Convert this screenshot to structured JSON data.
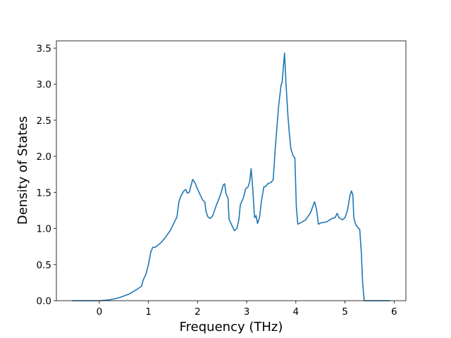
{
  "chart_data": {
    "type": "line",
    "xlabel": "Frequency (THz)",
    "ylabel": "Density of States",
    "xlim": [
      -0.874,
      6.24
    ],
    "ylim": [
      0,
      3.6
    ],
    "xticks": [
      0,
      1,
      2,
      3,
      4,
      5,
      6
    ],
    "yticks": [
      {
        "value": 0,
        "label": "0.0"
      },
      0.5,
      {
        "value": 1,
        "label": "1.0"
      },
      1.5,
      {
        "value": 2,
        "label": "2.0"
      },
      2.5,
      {
        "value": 3,
        "label": "3.0"
      },
      3.5
    ],
    "grid": false,
    "series": [
      {
        "color": "#1f77b4",
        "x": [
          -0.55,
          0,
          0.2,
          0.4,
          0.6,
          0.75,
          0.86,
          0.89,
          0.95,
          1.0,
          1.05,
          1.09,
          1.14,
          1.25,
          1.35,
          1.45,
          1.55,
          1.58,
          1.62,
          1.66,
          1.72,
          1.76,
          1.79,
          1.83,
          1.9,
          1.95,
          1.99,
          2.05,
          2.1,
          2.15,
          2.17,
          2.21,
          2.26,
          2.31,
          2.38,
          2.44,
          2.48,
          2.52,
          2.55,
          2.58,
          2.62,
          2.64,
          2.7,
          2.75,
          2.8,
          2.84,
          2.87,
          2.93,
          2.98,
          3.03,
          3.06,
          3.09,
          3.12,
          3.16,
          3.19,
          3.22,
          3.26,
          3.3,
          3.35,
          3.38,
          3.43,
          3.5,
          3.54,
          3.58,
          3.62,
          3.65,
          3.7,
          3.72,
          3.77,
          3.8,
          3.84,
          3.87,
          3.9,
          3.95,
          3.98,
          4.01,
          4.04,
          4.1,
          4.2,
          4.3,
          4.38,
          4.42,
          4.46,
          4.52,
          4.62,
          4.74,
          4.8,
          4.84,
          4.88,
          4.95,
          5.0,
          5.05,
          5.1,
          5.13,
          5.16,
          5.18,
          5.22,
          5.28,
          5.3,
          5.33,
          5.36,
          5.39,
          5.92
        ],
        "values": [
          0,
          0,
          0.01,
          0.04,
          0.09,
          0.15,
          0.2,
          0.28,
          0.37,
          0.5,
          0.68,
          0.74,
          0.74,
          0.8,
          0.88,
          0.98,
          1.12,
          1.16,
          1.37,
          1.45,
          1.52,
          1.54,
          1.49,
          1.5,
          1.68,
          1.63,
          1.56,
          1.47,
          1.4,
          1.36,
          1.24,
          1.16,
          1.14,
          1.18,
          1.32,
          1.42,
          1.5,
          1.6,
          1.62,
          1.48,
          1.42,
          1.13,
          1.04,
          0.97,
          1.0,
          1.12,
          1.33,
          1.42,
          1.55,
          1.58,
          1.65,
          1.83,
          1.58,
          1.15,
          1.18,
          1.07,
          1.15,
          1.38,
          1.58,
          1.58,
          1.62,
          1.64,
          1.68,
          2.1,
          2.45,
          2.7,
          2.99,
          3.02,
          3.43,
          3.0,
          2.55,
          2.3,
          2.1,
          2.0,
          1.98,
          1.3,
          1.06,
          1.08,
          1.12,
          1.22,
          1.37,
          1.27,
          1.06,
          1.08,
          1.09,
          1.14,
          1.15,
          1.21,
          1.15,
          1.12,
          1.15,
          1.25,
          1.45,
          1.52,
          1.47,
          1.15,
          1.05,
          1.0,
          0.99,
          0.7,
          0.25,
          0,
          0
        ]
      }
    ]
  }
}
